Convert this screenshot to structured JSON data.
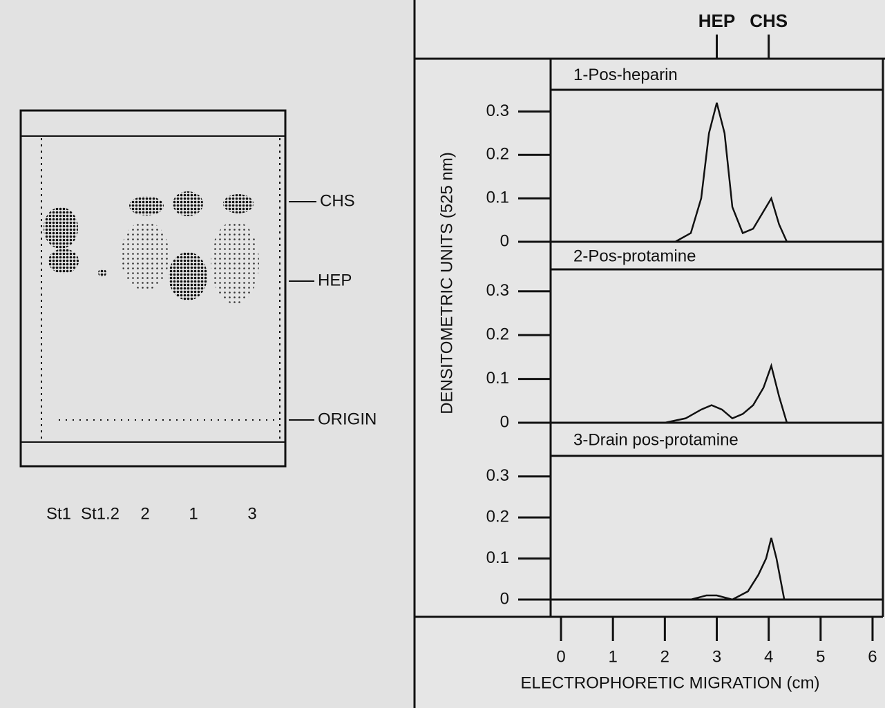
{
  "gel": {
    "lanes": [
      "St1",
      "St1.2",
      "2",
      "1",
      "3"
    ],
    "bands": [
      "CHS",
      "HEP",
      "ORIGIN"
    ]
  },
  "chart_data": [
    {
      "type": "line",
      "title": "1-Pos-heparin",
      "xlim": [
        -0.2,
        6.2
      ],
      "ylim": [
        0,
        0.35
      ],
      "yticks": [
        0,
        0.1,
        0.2,
        0.3
      ],
      "annotations": [
        {
          "text": "HEP",
          "x": 3
        },
        {
          "text": "CHS",
          "x": 4
        }
      ],
      "x": [
        2.2,
        2.5,
        2.7,
        2.85,
        3.0,
        3.15,
        3.3,
        3.5,
        3.7,
        3.9,
        4.05,
        4.2,
        4.35,
        4.6
      ],
      "values": [
        0,
        0.02,
        0.1,
        0.25,
        0.32,
        0.25,
        0.08,
        0.02,
        0.03,
        0.07,
        0.1,
        0.04,
        0,
        0
      ]
    },
    {
      "type": "line",
      "title": "2-Pos-protamine",
      "ylabel": "DENSITOMETRIC UNITS (525 nm)",
      "xlim": [
        -0.2,
        6.2
      ],
      "ylim": [
        0,
        0.35
      ],
      "yticks": [
        0,
        0.1,
        0.2,
        0.3
      ],
      "x": [
        2.0,
        2.4,
        2.7,
        2.9,
        3.1,
        3.3,
        3.5,
        3.7,
        3.9,
        4.05,
        4.2,
        4.35,
        4.6
      ],
      "values": [
        0,
        0.01,
        0.03,
        0.04,
        0.03,
        0.01,
        0.02,
        0.04,
        0.08,
        0.13,
        0.06,
        0,
        0
      ]
    },
    {
      "type": "line",
      "title": "3-Drain pos-protamine",
      "xlabel": "ELECTROPHORETIC MIGRATION (cm)",
      "xlim": [
        -0.2,
        6.2
      ],
      "xticks": [
        0,
        1,
        2,
        3,
        4,
        5,
        6
      ],
      "ylim": [
        0,
        0.35
      ],
      "yticks": [
        0,
        0.1,
        0.2,
        0.3
      ],
      "x": [
        2.5,
        2.8,
        3.0,
        3.3,
        3.6,
        3.8,
        3.95,
        4.05,
        4.15,
        4.3,
        4.5
      ],
      "values": [
        0,
        0.01,
        0.01,
        0,
        0.02,
        0.06,
        0.1,
        0.15,
        0.1,
        0,
        0
      ]
    }
  ]
}
